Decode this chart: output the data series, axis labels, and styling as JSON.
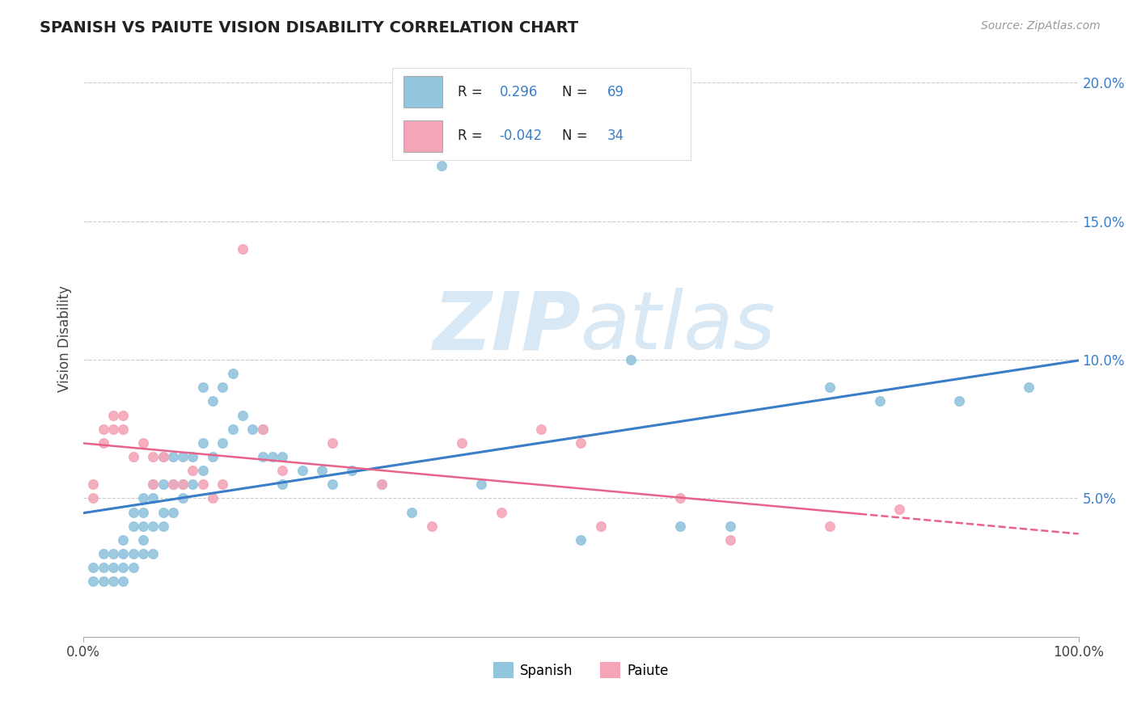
{
  "title": "SPANISH VS PAIUTE VISION DISABILITY CORRELATION CHART",
  "source": "Source: ZipAtlas.com",
  "ylabel": "Vision Disability",
  "xlim": [
    0.0,
    1.0
  ],
  "ylim": [
    0.0,
    0.215
  ],
  "yticks": [
    0.0,
    0.05,
    0.1,
    0.15,
    0.2
  ],
  "ytick_labels": [
    "",
    "5.0%",
    "10.0%",
    "15.0%",
    "20.0%"
  ],
  "spanish_color": "#92c5de",
  "paiute_color": "#f4a6b8",
  "trend_spanish_color": "#3a7dc9",
  "trend_paiute_color": "#e8638a",
  "background_color": "#ffffff",
  "watermark_zip": "ZIP",
  "watermark_atlas": "atlas",
  "legend_r1_label": "R = ",
  "legend_r1_value": " 0.296",
  "legend_r1_n_label": "N = ",
  "legend_r1_n_value": "69",
  "legend_r2_label": "R = ",
  "legend_r2_value": "-0.042",
  "legend_r2_n_label": "N = ",
  "legend_r2_n_value": "34",
  "text_color_dark": "#222222",
  "text_color_blue": "#3a7dc9",
  "spanish_x": [
    0.01,
    0.01,
    0.02,
    0.02,
    0.02,
    0.03,
    0.03,
    0.03,
    0.04,
    0.04,
    0.04,
    0.04,
    0.05,
    0.05,
    0.05,
    0.05,
    0.06,
    0.06,
    0.06,
    0.06,
    0.06,
    0.07,
    0.07,
    0.07,
    0.07,
    0.08,
    0.08,
    0.08,
    0.08,
    0.09,
    0.09,
    0.09,
    0.1,
    0.1,
    0.1,
    0.11,
    0.11,
    0.12,
    0.12,
    0.12,
    0.13,
    0.13,
    0.14,
    0.14,
    0.15,
    0.15,
    0.16,
    0.17,
    0.18,
    0.18,
    0.19,
    0.2,
    0.2,
    0.22,
    0.24,
    0.25,
    0.27,
    0.3,
    0.33,
    0.36,
    0.4,
    0.5,
    0.55,
    0.6,
    0.65,
    0.75,
    0.8,
    0.88,
    0.95
  ],
  "spanish_y": [
    0.02,
    0.025,
    0.02,
    0.025,
    0.03,
    0.02,
    0.025,
    0.03,
    0.02,
    0.025,
    0.03,
    0.035,
    0.025,
    0.03,
    0.04,
    0.045,
    0.03,
    0.035,
    0.04,
    0.045,
    0.05,
    0.03,
    0.04,
    0.05,
    0.055,
    0.04,
    0.045,
    0.055,
    0.065,
    0.045,
    0.055,
    0.065,
    0.05,
    0.055,
    0.065,
    0.055,
    0.065,
    0.06,
    0.07,
    0.09,
    0.065,
    0.085,
    0.07,
    0.09,
    0.075,
    0.095,
    0.08,
    0.075,
    0.065,
    0.075,
    0.065,
    0.065,
    0.055,
    0.06,
    0.06,
    0.055,
    0.06,
    0.055,
    0.045,
    0.17,
    0.055,
    0.035,
    0.1,
    0.04,
    0.04,
    0.09,
    0.085,
    0.085,
    0.09
  ],
  "paiute_x": [
    0.01,
    0.01,
    0.02,
    0.02,
    0.03,
    0.03,
    0.04,
    0.04,
    0.05,
    0.06,
    0.07,
    0.07,
    0.08,
    0.09,
    0.1,
    0.11,
    0.12,
    0.13,
    0.14,
    0.16,
    0.18,
    0.2,
    0.25,
    0.3,
    0.35,
    0.38,
    0.42,
    0.46,
    0.5,
    0.52,
    0.6,
    0.65,
    0.75,
    0.82
  ],
  "paiute_y": [
    0.05,
    0.055,
    0.07,
    0.075,
    0.075,
    0.08,
    0.08,
    0.075,
    0.065,
    0.07,
    0.065,
    0.055,
    0.065,
    0.055,
    0.055,
    0.06,
    0.055,
    0.05,
    0.055,
    0.14,
    0.075,
    0.06,
    0.07,
    0.055,
    0.04,
    0.07,
    0.045,
    0.075,
    0.07,
    0.04,
    0.05,
    0.035,
    0.04,
    0.046
  ]
}
